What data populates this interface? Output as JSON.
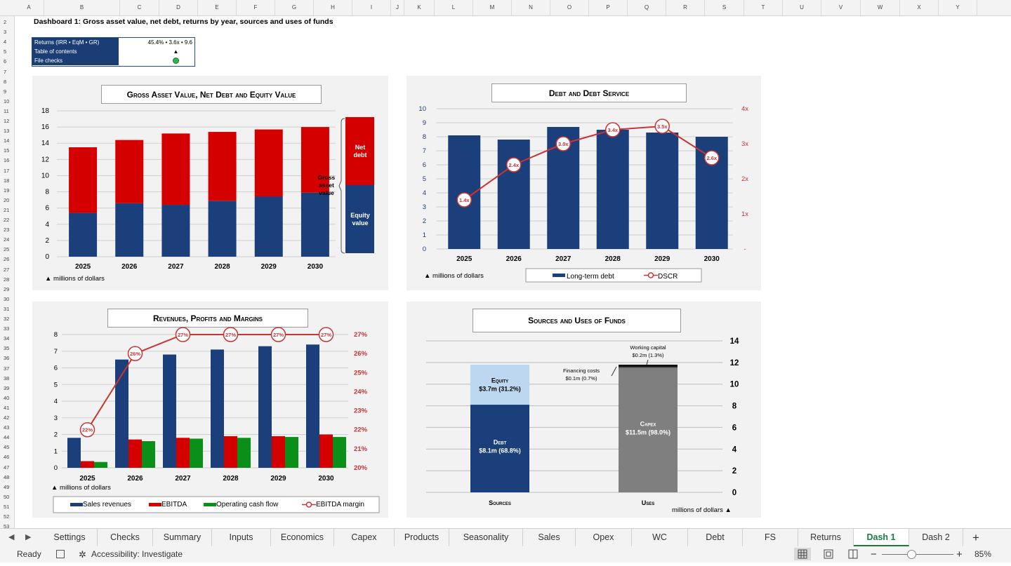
{
  "sheet_columns": [
    "A",
    "B",
    "C",
    "D",
    "E",
    "F",
    "G",
    "H",
    "I",
    "J",
    "K",
    "L",
    "M",
    "N",
    "O",
    "P",
    "Q",
    "R",
    "S",
    "T",
    "U",
    "V",
    "W",
    "X",
    "Y"
  ],
  "title": "Dashboard 1: Gross asset value, net debt, returns by year, sources and uses of funds",
  "info": {
    "returns_label": "Returns (IRR • EqM • GR)",
    "returns_value": "45.4% • 3.6x • 9.6",
    "toc_label": "Table of contents",
    "toc_value": "▲",
    "checks_label": "File checks",
    "check_color": "#2db34a"
  },
  "charts": {
    "gav": {
      "title": "Gross Asset Value, Net Debt and Equity Value",
      "unit_note": "▲ millions of dollars",
      "legend_labels": {
        "net_debt": "Net debt",
        "equity": "Equity value",
        "gross": "Gross asset value"
      }
    },
    "debt": {
      "title": "Debt and Debt Service",
      "unit_note": "▲ millions of dollars",
      "legend": [
        "Long-term debt",
        "DSCR"
      ]
    },
    "rev": {
      "title": "Revenues, Profits and Margins",
      "unit_note": "▲ millions of dollars",
      "legend": [
        "Sales revenues",
        "EBITDA",
        "Operating cash flow",
        "EBITDA margin"
      ]
    },
    "su": {
      "title": "Sources and Uses of Funds",
      "unit_note": "millions of dollars ▲",
      "labels": {
        "equity": "Equity",
        "equity_val": "$3.7m (31.2%)",
        "debt": "Debt",
        "debt_val": "$8.1m (68.8%)",
        "capex": "Capex",
        "capex_val": "$11.5m (98.0%)",
        "fin": "Financing costs",
        "fin_val": "$0.1m (0.7%)",
        "wc": "Working capital",
        "wc_val": "$0.2m (1.3%)",
        "sources": "Sources",
        "uses": "Uses"
      }
    }
  },
  "colors": {
    "navy": "#1a3f7a",
    "red": "#d40000",
    "green": "#0a8f19",
    "light_blue": "#bdd7f1",
    "grey": "#7f7f7f",
    "line_red": "#cc3333"
  },
  "chart_data": [
    {
      "type": "bar",
      "stacked": true,
      "title": "Gross Asset Value, Net Debt and Equity Value",
      "categories": [
        "2025",
        "2026",
        "2027",
        "2028",
        "2029",
        "2030"
      ],
      "series": [
        {
          "name": "Equity value",
          "values": [
            5.4,
            6.6,
            6.4,
            6.9,
            7.4,
            7.9
          ]
        },
        {
          "name": "Net debt",
          "values": [
            8.1,
            7.8,
            8.8,
            8.5,
            8.3,
            8.1
          ]
        }
      ],
      "ylim": [
        0,
        18
      ],
      "yticks": [
        0,
        2,
        4,
        6,
        8,
        10,
        12,
        14,
        16,
        18
      ],
      "grid": true
    },
    {
      "type": "bar",
      "title": "Debt and Debt Service",
      "categories": [
        "2025",
        "2026",
        "2027",
        "2028",
        "2029",
        "2030"
      ],
      "series": [
        {
          "name": "Long-term debt",
          "values": [
            8.1,
            7.8,
            8.7,
            8.5,
            8.3,
            8.0
          ]
        },
        {
          "name": "DSCR",
          "axis": "right",
          "values": [
            1.4,
            2.4,
            3.0,
            3.4,
            3.5,
            2.6
          ],
          "labels": [
            "1.4x",
            "2.4x",
            "3.0x",
            "3.4x",
            "3.5x",
            "2.6x"
          ]
        }
      ],
      "ylim": [
        0,
        10
      ],
      "y2lim": [
        0,
        4
      ],
      "yticks": [
        0,
        1,
        2,
        3,
        4,
        5,
        6,
        7,
        8,
        9,
        10
      ],
      "y2ticks": [
        "-",
        "1x",
        "2x",
        "3x",
        "4x"
      ],
      "legend_position": "bottom",
      "grid": true
    },
    {
      "type": "bar",
      "title": "Revenues, Profits and Margins",
      "categories": [
        "2025",
        "2026",
        "2027",
        "2028",
        "2029",
        "2030"
      ],
      "series": [
        {
          "name": "Sales revenues",
          "values": [
            1.8,
            6.5,
            6.8,
            7.1,
            7.3,
            7.4
          ]
        },
        {
          "name": "EBITDA",
          "values": [
            0.4,
            1.7,
            1.8,
            1.9,
            1.9,
            2.0
          ]
        },
        {
          "name": "Operating cash flow",
          "values": [
            0.35,
            1.6,
            1.75,
            1.8,
            1.85,
            1.85
          ]
        },
        {
          "name": "EBITDA margin",
          "axis": "right",
          "values": [
            22,
            26,
            27,
            27,
            27,
            27
          ],
          "labels": [
            "22%",
            "26%",
            "27%",
            "27%",
            "27%",
            "27%"
          ]
        }
      ],
      "ylim": [
        0,
        8
      ],
      "y2lim": [
        20,
        27
      ],
      "yticks": [
        0,
        1,
        2,
        3,
        4,
        5,
        6,
        7,
        8
      ],
      "y2ticks": [
        "20%",
        "21%",
        "22%",
        "23%",
        "24%",
        "25%",
        "26%",
        "27%"
      ],
      "legend_position": "bottom",
      "grid": true
    },
    {
      "type": "bar",
      "stacked": true,
      "title": "Sources and Uses of Funds",
      "categories": [
        "Sources",
        "Uses"
      ],
      "series": [
        {
          "name": "Debt",
          "values": [
            8.1,
            0
          ]
        },
        {
          "name": "Equity",
          "values": [
            3.7,
            0
          ]
        },
        {
          "name": "Capex",
          "values": [
            0,
            11.5
          ]
        },
        {
          "name": "Financing costs",
          "values": [
            0,
            0.1
          ]
        },
        {
          "name": "Working capital",
          "values": [
            0,
            0.2
          ]
        }
      ],
      "ylim": [
        0,
        14
      ],
      "yticks": [
        0,
        2,
        4,
        6,
        8,
        10,
        12,
        14
      ],
      "grid": true
    }
  ],
  "tabs": [
    "Settings",
    "Checks",
    "Summary",
    "Inputs",
    "Economics",
    "Capex",
    "Products",
    "Seasonality",
    "Sales",
    "Opex",
    "WC",
    "Debt",
    "FS",
    "Returns",
    "Dash 1",
    "Dash 2"
  ],
  "active_tab": "Dash 1",
  "status": {
    "ready": "Ready",
    "accessibility": "Accessibility: Investigate",
    "zoom": "85%"
  }
}
